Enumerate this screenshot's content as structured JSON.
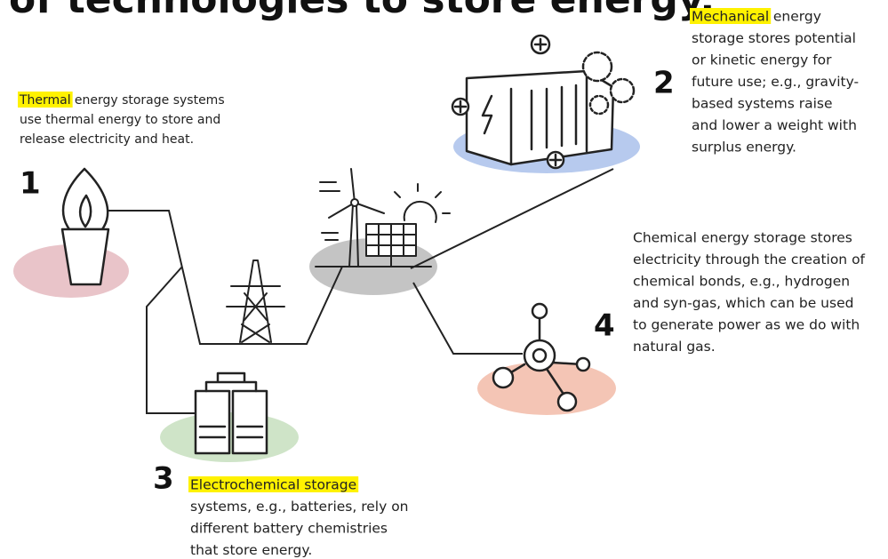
{
  "title": "of technologies to store energy.",
  "thermal": {
    "number": "1",
    "highlight": "Thermal",
    "first_rest": "energy storage systems",
    "lines": [
      "use thermal energy to store and",
      "release electricity and heat."
    ]
  },
  "mechanical": {
    "number": "2",
    "highlight": "Mechanical",
    "first_rest": "energy",
    "lines": [
      "storage stores potential",
      "or kinetic energy for",
      "future use; e.g., gravity-",
      "based systems raise",
      "and lower a weight with",
      "surplus energy."
    ]
  },
  "electrochemical": {
    "number": "3",
    "highlight": "Electrochemical storage",
    "lines": [
      "systems, e.g., batteries, rely on",
      "different battery chemistries",
      "that store energy."
    ]
  },
  "chemical": {
    "number": "4",
    "lines": [
      "Chemical energy storage stores",
      "electricity through the creation of",
      "chemical bonds, e.g., hydrogen",
      "and syn-gas, which can be used",
      "to generate power as we do with",
      "natural gas."
    ]
  }
}
